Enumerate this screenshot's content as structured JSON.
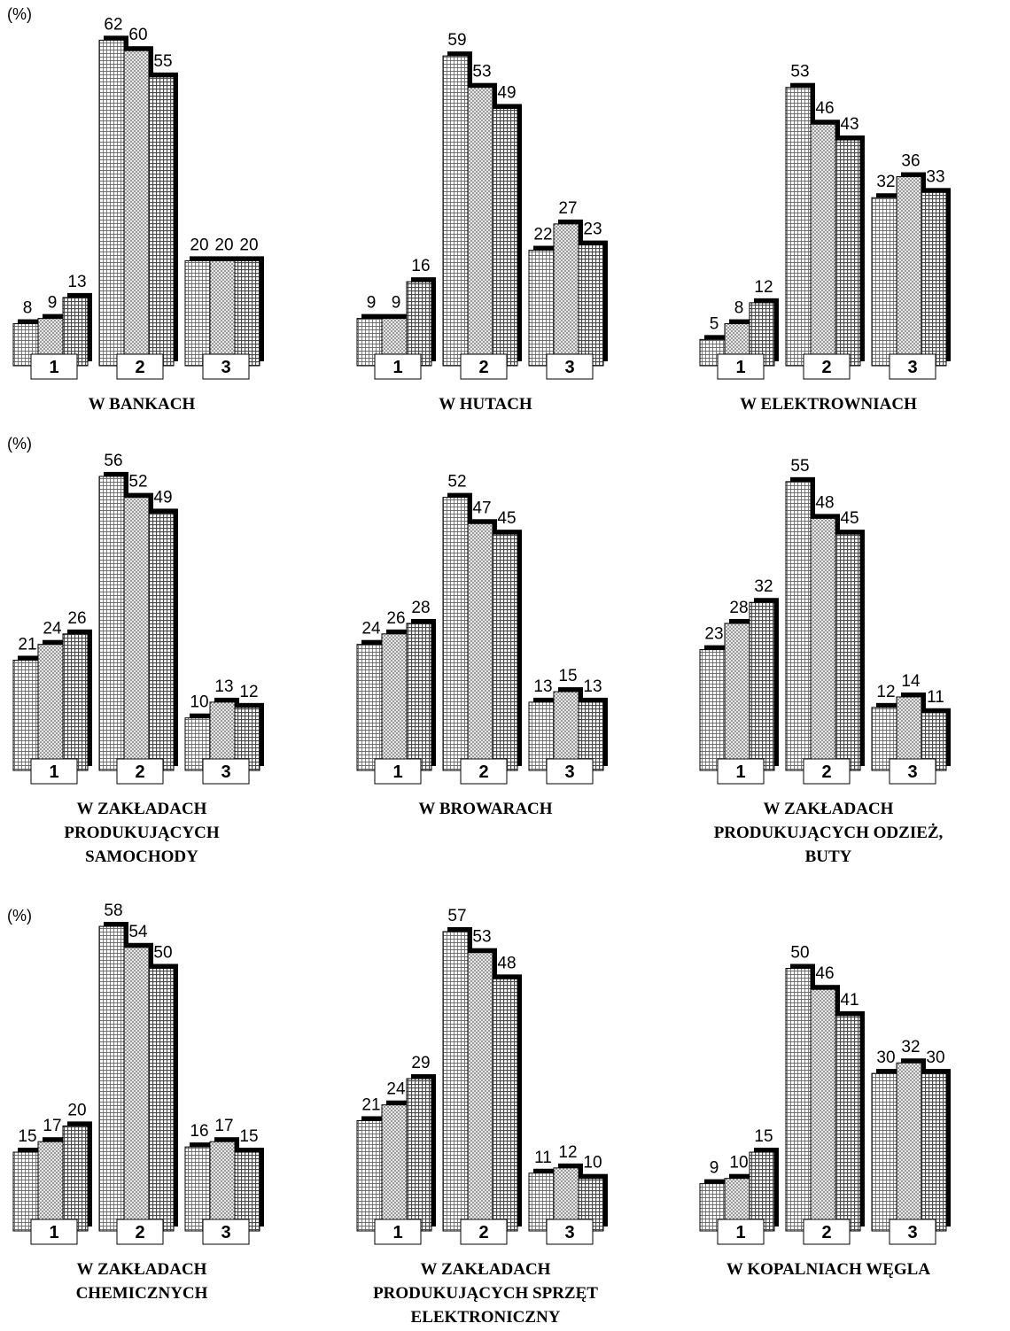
{
  "chart_data": [
    {
      "type": "bar",
      "y_label": "(%)",
      "title": [
        "W BANKACH"
      ],
      "categories": [
        "1",
        "2",
        "3"
      ],
      "ylim": [
        0,
        70
      ],
      "series": [
        {
          "color": "#6e6e6e",
          "values": [
            8,
            62,
            20
          ]
        },
        {
          "color": "#8c8c8c",
          "values": [
            9,
            60,
            20
          ]
        },
        {
          "color": "#4a4a4a",
          "values": [
            13,
            55,
            20
          ]
        }
      ]
    },
    {
      "type": "bar",
      "title": [
        "W HUTACH"
      ],
      "categories": [
        "1",
        "2",
        "3"
      ],
      "ylim": [
        0,
        70
      ],
      "series": [
        {
          "color": "#6e6e6e",
          "values": [
            9,
            59,
            22
          ]
        },
        {
          "color": "#8c8c8c",
          "values": [
            9,
            53,
            27
          ]
        },
        {
          "color": "#4a4a4a",
          "values": [
            16,
            49,
            23
          ]
        }
      ]
    },
    {
      "type": "bar",
      "title": [
        "W ELEKTROWNIACH"
      ],
      "categories": [
        "1",
        "2",
        "3"
      ],
      "ylim": [
        0,
        70
      ],
      "series": [
        {
          "color": "#6e6e6e",
          "values": [
            5,
            53,
            32
          ]
        },
        {
          "color": "#8c8c8c",
          "values": [
            8,
            46,
            36
          ]
        },
        {
          "color": "#4a4a4a",
          "values": [
            12,
            43,
            33
          ]
        }
      ]
    },
    {
      "type": "bar",
      "y_label": "(%)",
      "title": [
        "W ZAKŁADACH",
        "PRODUKUJĄCYCH",
        "SAMOCHODY"
      ],
      "categories": [
        "1",
        "2",
        "3"
      ],
      "ylim": [
        0,
        70
      ],
      "series": [
        {
          "color": "#6e6e6e",
          "values": [
            21,
            56,
            10
          ]
        },
        {
          "color": "#8c8c8c",
          "values": [
            24,
            52,
            13
          ]
        },
        {
          "color": "#4a4a4a",
          "values": [
            26,
            49,
            12
          ]
        }
      ]
    },
    {
      "type": "bar",
      "title": [
        "W BROWARACH"
      ],
      "categories": [
        "1",
        "2",
        "3"
      ],
      "ylim": [
        0,
        70
      ],
      "series": [
        {
          "color": "#6e6e6e",
          "values": [
            24,
            52,
            13
          ]
        },
        {
          "color": "#8c8c8c",
          "values": [
            26,
            47,
            15
          ]
        },
        {
          "color": "#4a4a4a",
          "values": [
            28,
            45,
            13
          ]
        }
      ]
    },
    {
      "type": "bar",
      "title": [
        "W ZAKŁADACH",
        "PRODUKUJĄCYCH ODZIEŻ,",
        "BUTY"
      ],
      "categories": [
        "1",
        "2",
        "3"
      ],
      "ylim": [
        0,
        70
      ],
      "series": [
        {
          "color": "#6e6e6e",
          "values": [
            23,
            55,
            12
          ]
        },
        {
          "color": "#8c8c8c",
          "values": [
            28,
            48,
            14
          ]
        },
        {
          "color": "#4a4a4a",
          "values": [
            32,
            45,
            11
          ]
        }
      ]
    },
    {
      "type": "bar",
      "y_label": "(%)",
      "title": [
        "W ZAKŁADACH",
        "CHEMICZNYCH"
      ],
      "categories": [
        "1",
        "2",
        "3"
      ],
      "ylim": [
        0,
        70
      ],
      "series": [
        {
          "color": "#6e6e6e",
          "values": [
            15,
            58,
            16
          ]
        },
        {
          "color": "#8c8c8c",
          "values": [
            17,
            54,
            17
          ]
        },
        {
          "color": "#4a4a4a",
          "values": [
            20,
            50,
            15
          ]
        }
      ]
    },
    {
      "type": "bar",
      "title": [
        "W ZAKŁADACH",
        "PRODUKUJĄCYCH SPRZĘT",
        "ELEKTRONICZNY"
      ],
      "categories": [
        "1",
        "2",
        "3"
      ],
      "ylim": [
        0,
        70
      ],
      "series": [
        {
          "color": "#6e6e6e",
          "values": [
            21,
            57,
            11
          ]
        },
        {
          "color": "#8c8c8c",
          "values": [
            24,
            53,
            12
          ]
        },
        {
          "color": "#4a4a4a",
          "values": [
            29,
            48,
            10
          ]
        }
      ]
    },
    {
      "type": "bar",
      "title": [
        "W KOPALNIACH WĘGLA"
      ],
      "categories": [
        "1",
        "2",
        "3"
      ],
      "ylim": [
        0,
        70
      ],
      "series": [
        {
          "color": "#6e6e6e",
          "values": [
            9,
            50,
            30
          ]
        },
        {
          "color": "#8c8c8c",
          "values": [
            10,
            46,
            32
          ]
        },
        {
          "color": "#4a4a4a",
          "values": [
            15,
            41,
            30
          ]
        }
      ]
    }
  ]
}
